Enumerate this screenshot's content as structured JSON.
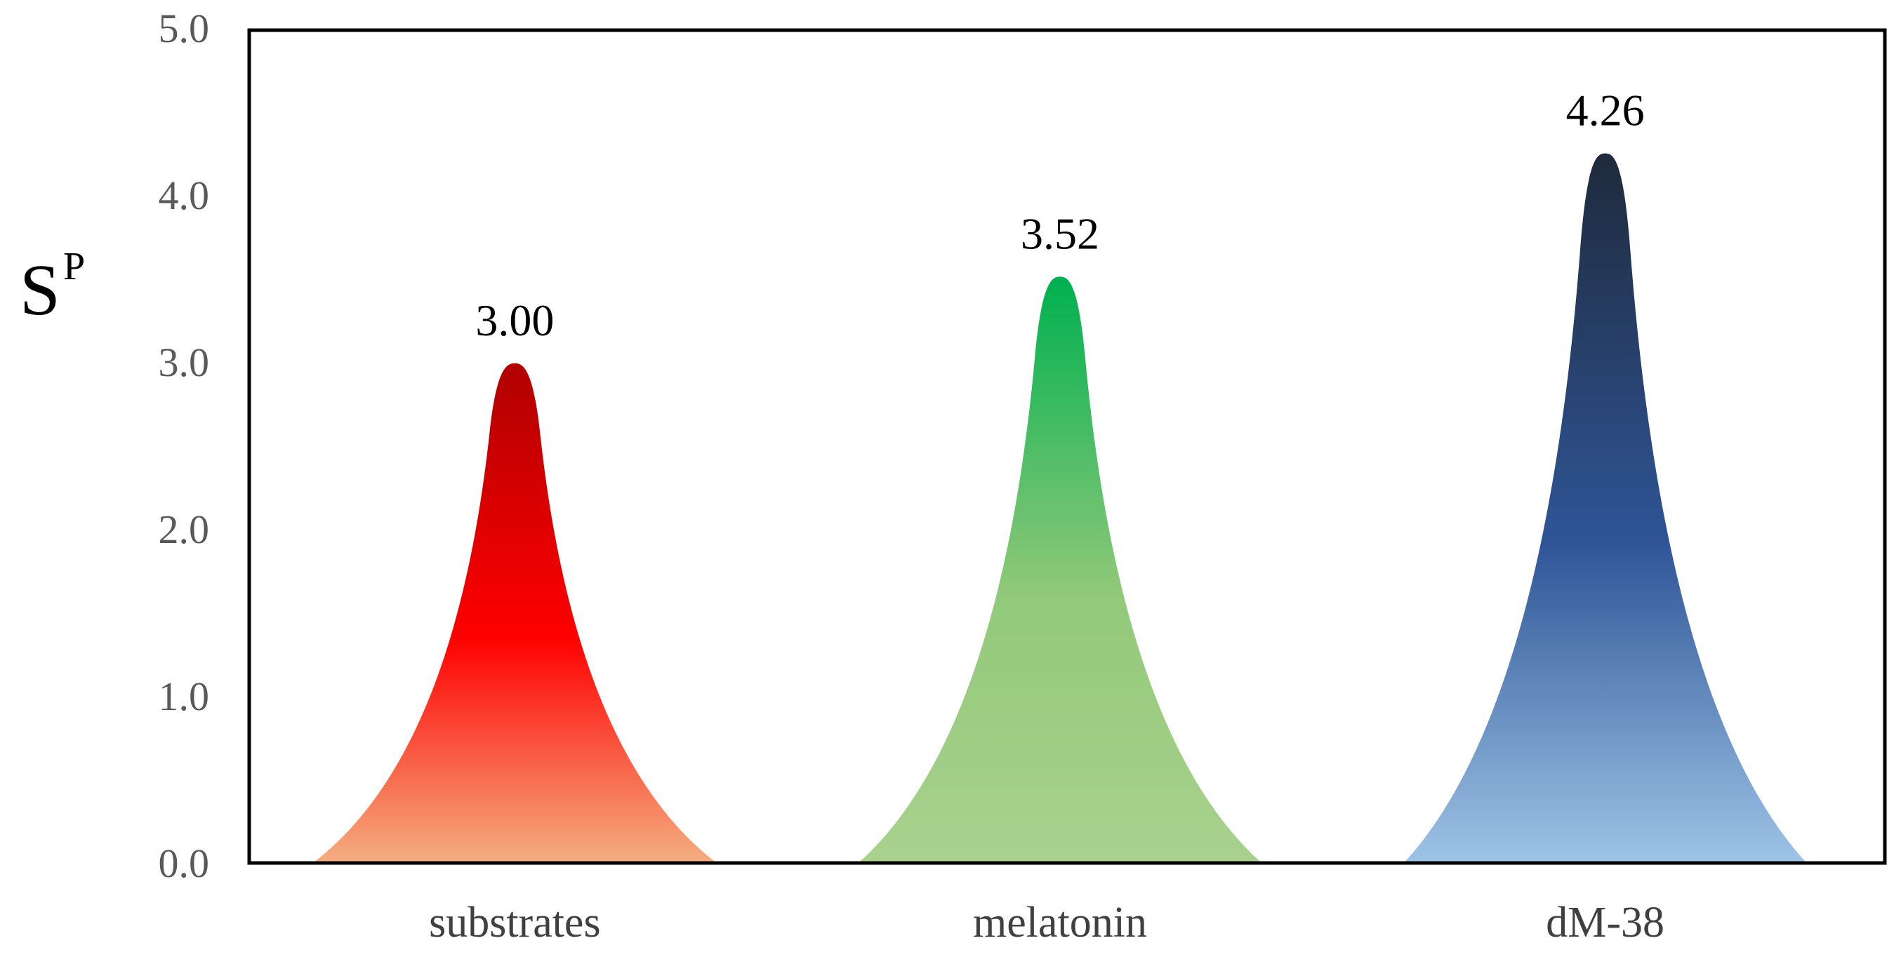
{
  "chart_data": {
    "type": "bar",
    "title": "",
    "xlabel": "",
    "ylabel": "S",
    "ylabel_superscript": "P",
    "categories": [
      "substrates",
      "melatonin",
      "dM-38"
    ],
    "values": [
      3.0,
      3.52,
      4.26
    ],
    "data_labels": [
      "3.00",
      "3.52",
      "4.26"
    ],
    "ylim": [
      0,
      5
    ],
    "yticks": [
      0,
      1,
      2,
      3,
      4,
      5
    ],
    "ytick_labels": [
      "0.0",
      "1.0",
      "2.0",
      "3.0",
      "4.0",
      "5.0"
    ],
    "grid": false,
    "legend": "none",
    "mark_shape": "peak",
    "series_colors": [
      {
        "top": "#b00000",
        "mid": "#ff0000",
        "bottom": "#f4ad80"
      },
      {
        "top": "#00b050",
        "mid": "#92c97a",
        "bottom": "#a9d18e"
      },
      {
        "top": "#1f2a3c",
        "mid": "#2f5597",
        "bottom": "#9dc3e6"
      }
    ]
  }
}
